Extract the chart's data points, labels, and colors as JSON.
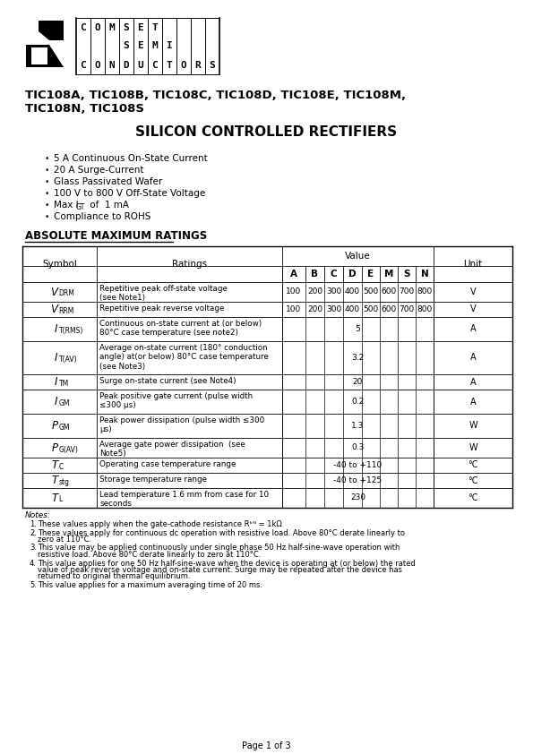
{
  "page_bg": "#ffffff",
  "title_line1": "TIC108A, TIC108B, TIC108C, TIC108D, TIC108E, TIC108M,",
  "title_line2": "TIC108N, TIC108S",
  "subtitle": "SILICON CONTROLLED RECTIFIERS",
  "section_title": "ABSOLUTE MAXIMUM RATINGS",
  "logo_letters_row1": "C O M S E T",
  "logo_letters_row2": "S E M I",
  "logo_letters_row3": "C O N D U C T O R S",
  "logo_col_count": 10,
  "table_rows": [
    {
      "sym_main": "V",
      "sym_sub": "DRM",
      "ratings": "Repetitive peak off-state voltage\n(see Note1)",
      "values": [
        "100",
        "200",
        "300",
        "400",
        "500",
        "600",
        "700",
        "800"
      ],
      "unit": "V",
      "rh": 22
    },
    {
      "sym_main": "V",
      "sym_sub": "RRM",
      "ratings": "Repetitive peak reverse voltage",
      "values": [
        "100",
        "200",
        "300",
        "400",
        "500",
        "600",
        "700",
        "800"
      ],
      "unit": "V",
      "rh": 17
    },
    {
      "sym_main": "I",
      "sym_sub": "T(RMS)",
      "ratings": "Continuous on-state current at (or below)\n80°C case temperature (see note2)",
      "values": [
        "",
        "",
        "",
        "",
        "5",
        "",
        "",
        ""
      ],
      "unit": "A",
      "rh": 27
    },
    {
      "sym_main": "I",
      "sym_sub": "T(AV)",
      "ratings": "Average on-state current (180° conduction\nangle) at(or below) 80°C case temperature\n(see Note3)",
      "values": [
        "",
        "",
        "",
        "",
        "3.2",
        "",
        "",
        ""
      ],
      "unit": "A",
      "rh": 37
    },
    {
      "sym_main": "I",
      "sym_sub": "TM",
      "ratings": "Surge on-state current (see Note4)",
      "values": [
        "",
        "",
        "",
        "",
        "20",
        "",
        "",
        ""
      ],
      "unit": "A",
      "rh": 17
    },
    {
      "sym_main": "I",
      "sym_sub": "GM",
      "ratings": "Peak positive gate current (pulse width\n≤300 μs)",
      "values": [
        "",
        "",
        "",
        "",
        "0.2",
        "",
        "",
        ""
      ],
      "unit": "A",
      "rh": 27
    },
    {
      "sym_main": "P",
      "sym_sub": "GM",
      "ratings": "Peak power dissipation (pulse width ≤300\nμs)",
      "values": [
        "",
        "",
        "",
        "",
        "1.3",
        "",
        "",
        ""
      ],
      "unit": "W",
      "rh": 27
    },
    {
      "sym_main": "P",
      "sym_sub": "G(AV)",
      "ratings": "Average gate power dissipation  (see\nNote5)",
      "values": [
        "",
        "",
        "",
        "",
        "0.3",
        "",
        "",
        ""
      ],
      "unit": "W",
      "rh": 22
    },
    {
      "sym_main": "T",
      "sym_sub": "C",
      "ratings": "Operating case temperature range",
      "values": [
        "",
        "",
        "",
        "",
        "-40 to +110",
        "",
        "",
        ""
      ],
      "unit": "°C",
      "rh": 17
    },
    {
      "sym_main": "T",
      "sym_sub": "stg",
      "ratings": "Storage temperature range",
      "values": [
        "",
        "",
        "",
        "",
        "-40 to +125",
        "",
        "",
        ""
      ],
      "unit": "°C",
      "rh": 17
    },
    {
      "sym_main": "T",
      "sym_sub": "L",
      "ratings": "Lead temperature 1.6 mm from case for 10\nseconds",
      "values": [
        "",
        "",
        "",
        "",
        "230",
        "",
        "",
        ""
      ],
      "unit": "°C",
      "rh": 22
    }
  ],
  "notes": [
    "These values apply when the gate-cathode resistance Rᵏᴺ = 1kΩ",
    "These values apply for continuous dc operation with resistive load. Above 80°C derate linearly to zero at 110°C.",
    "This value may be applied continuously under single phase 50 Hz half-sine-wave operation with resistive load. Above 80°C derate linearly to zero at 110°C.",
    "This value applies for one 50 Hz half-sine-wave when the device is operating at (or below) the rated value of peak reverse voltage and on-state current. Surge may be repeated after the device has returned to original thermal equilibrium.",
    "This value applies for a maximum averaging time of 20 ms."
  ],
  "footer": "Page 1 of 3"
}
